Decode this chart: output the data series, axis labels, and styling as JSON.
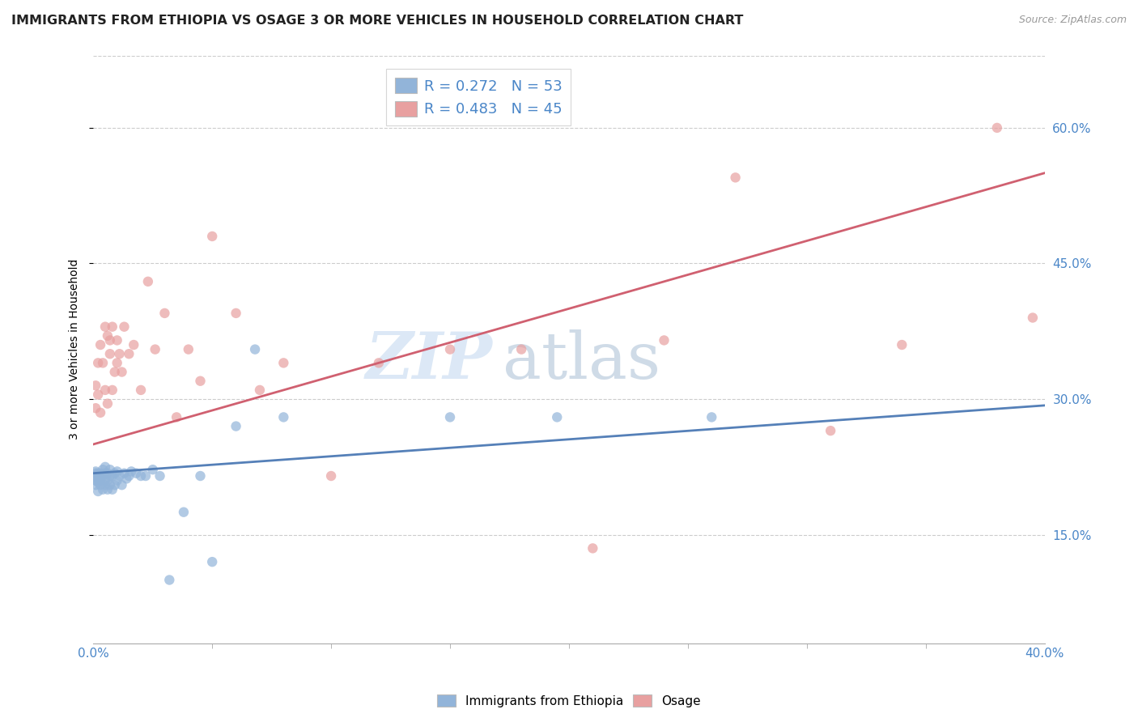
{
  "title": "IMMIGRANTS FROM ETHIOPIA VS OSAGE 3 OR MORE VEHICLES IN HOUSEHOLD CORRELATION CHART",
  "source": "Source: ZipAtlas.com",
  "ylabel": "3 or more Vehicles in Household",
  "ytick_labels": [
    "15.0%",
    "30.0%",
    "45.0%",
    "60.0%"
  ],
  "ytick_vals": [
    0.15,
    0.3,
    0.45,
    0.6
  ],
  "legend_blue_R": "R = 0.272",
  "legend_blue_N": "N = 53",
  "legend_pink_R": "R = 0.483",
  "legend_pink_N": "N = 45",
  "blue_color": "#92b4d9",
  "pink_color": "#e8a0a0",
  "blue_line_color": "#5580b8",
  "pink_line_color": "#d06070",
  "watermark_zip": "ZIP",
  "watermark_atlas": "atlas",
  "blue_scatter_x": [
    0.0,
    0.001,
    0.001,
    0.001,
    0.001,
    0.002,
    0.002,
    0.002,
    0.002,
    0.003,
    0.003,
    0.003,
    0.003,
    0.004,
    0.004,
    0.004,
    0.005,
    0.005,
    0.005,
    0.005,
    0.006,
    0.006,
    0.006,
    0.007,
    0.007,
    0.007,
    0.008,
    0.008,
    0.009,
    0.009,
    0.01,
    0.01,
    0.011,
    0.012,
    0.013,
    0.014,
    0.015,
    0.016,
    0.018,
    0.02,
    0.022,
    0.025,
    0.028,
    0.032,
    0.038,
    0.045,
    0.05,
    0.06,
    0.068,
    0.08,
    0.15,
    0.195,
    0.26
  ],
  "blue_scatter_y": [
    0.215,
    0.21,
    0.218,
    0.205,
    0.22,
    0.198,
    0.212,
    0.218,
    0.208,
    0.215,
    0.205,
    0.21,
    0.218,
    0.2,
    0.215,
    0.222,
    0.205,
    0.21,
    0.218,
    0.225,
    0.2,
    0.21,
    0.218,
    0.205,
    0.215,
    0.222,
    0.2,
    0.215,
    0.205,
    0.218,
    0.21,
    0.22,
    0.215,
    0.205,
    0.218,
    0.212,
    0.215,
    0.22,
    0.218,
    0.215,
    0.215,
    0.222,
    0.215,
    0.1,
    0.175,
    0.215,
    0.12,
    0.27,
    0.355,
    0.28,
    0.28,
    0.28,
    0.28
  ],
  "pink_scatter_x": [
    0.001,
    0.001,
    0.002,
    0.002,
    0.003,
    0.003,
    0.004,
    0.005,
    0.005,
    0.006,
    0.006,
    0.007,
    0.007,
    0.008,
    0.008,
    0.009,
    0.01,
    0.01,
    0.011,
    0.012,
    0.013,
    0.015,
    0.017,
    0.02,
    0.023,
    0.026,
    0.03,
    0.035,
    0.04,
    0.045,
    0.05,
    0.06,
    0.07,
    0.08,
    0.1,
    0.12,
    0.15,
    0.18,
    0.21,
    0.24,
    0.27,
    0.31,
    0.34,
    0.38,
    0.395
  ],
  "pink_scatter_y": [
    0.29,
    0.315,
    0.305,
    0.34,
    0.285,
    0.36,
    0.34,
    0.38,
    0.31,
    0.37,
    0.295,
    0.35,
    0.365,
    0.31,
    0.38,
    0.33,
    0.365,
    0.34,
    0.35,
    0.33,
    0.38,
    0.35,
    0.36,
    0.31,
    0.43,
    0.355,
    0.395,
    0.28,
    0.355,
    0.32,
    0.48,
    0.395,
    0.31,
    0.34,
    0.215,
    0.34,
    0.355,
    0.355,
    0.135,
    0.365,
    0.545,
    0.265,
    0.36,
    0.6,
    0.39
  ],
  "blue_line_x": [
    0.0,
    0.4
  ],
  "blue_line_y": [
    0.218,
    0.293
  ],
  "pink_line_x": [
    0.0,
    0.4
  ],
  "pink_line_y": [
    0.25,
    0.55
  ],
  "xlim": [
    0.0,
    0.4
  ],
  "ylim": [
    0.03,
    0.68
  ]
}
